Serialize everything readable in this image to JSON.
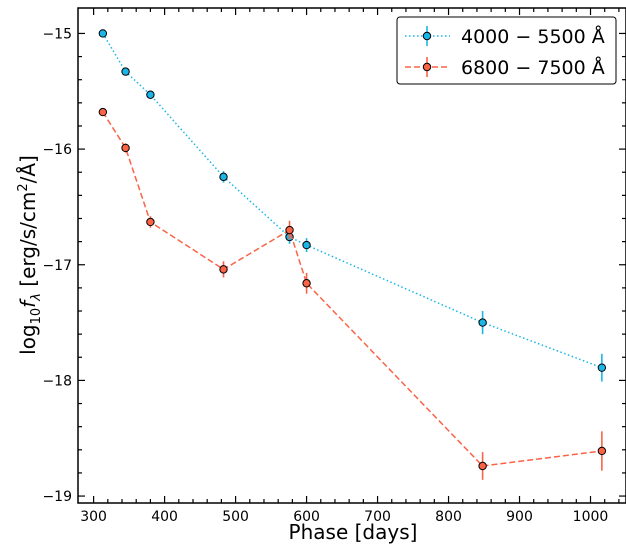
{
  "chart_data": {
    "type": "scatter",
    "xlabel": "Phase [days]",
    "ylabel_parts": {
      "prefix": "log",
      "sub": "10",
      "var": "f",
      "varsub": "λ",
      "unit_open": " [erg/s/cm",
      "unit_sup": "2",
      "unit_close": "/Å]"
    },
    "xlim": [
      278,
      1050
    ],
    "ylim": [
      -19.06,
      -14.78
    ],
    "x_ticks": [
      300,
      400,
      500,
      600,
      700,
      800,
      900,
      1000
    ],
    "x_tick_labels": [
      "300",
      "400",
      "500",
      "600",
      "700",
      "800",
      "900",
      "1000"
    ],
    "y_ticks": [
      -15,
      -16,
      -17,
      -18,
      -19
    ],
    "y_tick_labels": [
      "−15",
      "−16",
      "−17",
      "−18",
      "−19"
    ],
    "legend_position": "top-right",
    "series": [
      {
        "name": "4000 − 5500 Å",
        "color": "#1ab6e6",
        "line_style": "dotted",
        "x": [
          313,
          345,
          380,
          483,
          576,
          600,
          848,
          1016
        ],
        "y": [
          -15.0,
          -15.33,
          -15.53,
          -16.24,
          -16.76,
          -16.83,
          -17.5,
          -17.89
        ],
        "yerr": [
          0.02,
          0.03,
          0.03,
          0.05,
          0.06,
          0.06,
          0.1,
          0.12
        ]
      },
      {
        "name": "6800 − 7500 Å",
        "color": "#fb6347",
        "line_style": "dashed",
        "x": [
          313,
          345,
          380,
          483,
          576,
          600,
          848,
          1016
        ],
        "y": [
          -15.68,
          -15.99,
          -16.63,
          -17.04,
          -16.7,
          -17.16,
          -18.74,
          -18.61
        ],
        "yerr": [
          0.03,
          0.04,
          0.05,
          0.07,
          0.08,
          0.09,
          0.12,
          0.17
        ]
      }
    ]
  }
}
